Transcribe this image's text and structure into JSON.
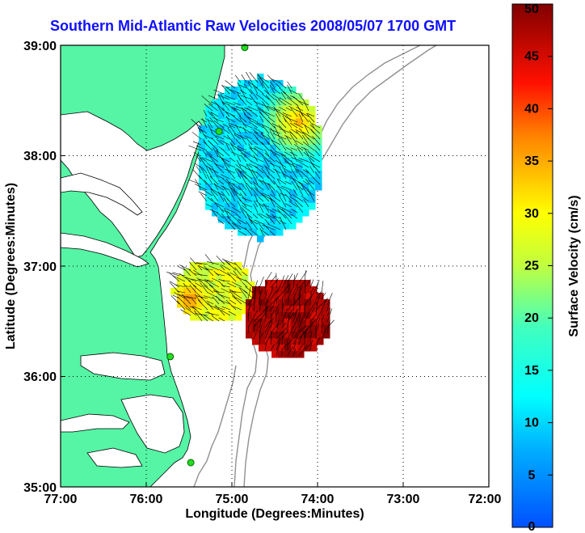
{
  "title": "Southern Mid-Atlantic Raw Velocities 2008/05/07 1700 GMT",
  "map": {
    "xlabel": "Longitude (Degrees:Minutes)",
    "ylabel": "Latitude (Degrees:Minutes)",
    "lon_ticks": [
      "77:00",
      "76:00",
      "75:00",
      "74:00",
      "73:00",
      "72:00"
    ],
    "lat_ticks": [
      "39:00",
      "38:00",
      "37:00",
      "36:00",
      "35:00"
    ],
    "lon_range": [
      -77,
      -72
    ],
    "lat_range": [
      35,
      39
    ],
    "land_color": "#55f5a5",
    "grid": "dotted",
    "sites": [
      {
        "lon": -74.85,
        "lat": 38.98
      },
      {
        "lon": -75.15,
        "lat": 38.22
      },
      {
        "lon": -75.72,
        "lat": 36.18
      },
      {
        "lon": -75.48,
        "lat": 35.22
      }
    ]
  },
  "colorbar": {
    "label": "Surface Velocity (cm/s)",
    "ticks": [
      "0",
      "5",
      "10",
      "15",
      "20",
      "25",
      "30",
      "35",
      "40",
      "45",
      "50"
    ],
    "range": [
      0,
      50
    ]
  }
}
